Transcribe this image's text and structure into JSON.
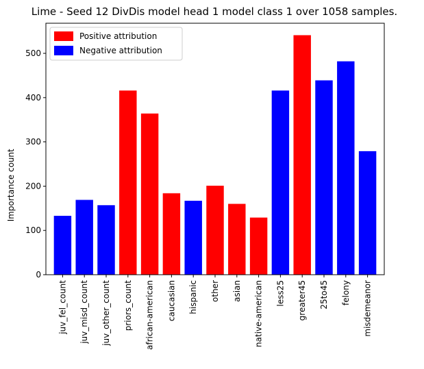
{
  "chart_data": {
    "type": "bar",
    "title": "Lime - Seed 12 DivDis model head 1 model class 1 over 1058 samples.",
    "xlabel": "",
    "ylabel": "Importance count",
    "categories": [
      "juv_fel_count",
      "juv_misd_count",
      "juv_other_count",
      "priors_count",
      "african-american",
      "caucasian",
      "hispanic",
      "other",
      "asian",
      "native-american",
      "less25",
      "greater45",
      "25to45",
      "felony",
      "misdemeanor"
    ],
    "values": [
      133,
      169,
      157,
      416,
      364,
      184,
      167,
      201,
      160,
      129,
      416,
      541,
      439,
      482,
      279
    ],
    "attribution": [
      "negative",
      "negative",
      "negative",
      "positive",
      "positive",
      "positive",
      "negative",
      "positive",
      "positive",
      "positive",
      "negative",
      "positive",
      "negative",
      "negative",
      "negative"
    ],
    "ylim": [
      0,
      568
    ],
    "yticks": [
      0,
      100,
      200,
      300,
      400,
      500
    ],
    "grid": false,
    "legend": {
      "placement": "top-left",
      "entries": [
        {
          "key": "positive",
          "label": "Positive attribution",
          "color": "#ff0000"
        },
        {
          "key": "negative",
          "label": "Negative attribution",
          "color": "#0000ff"
        }
      ]
    }
  }
}
